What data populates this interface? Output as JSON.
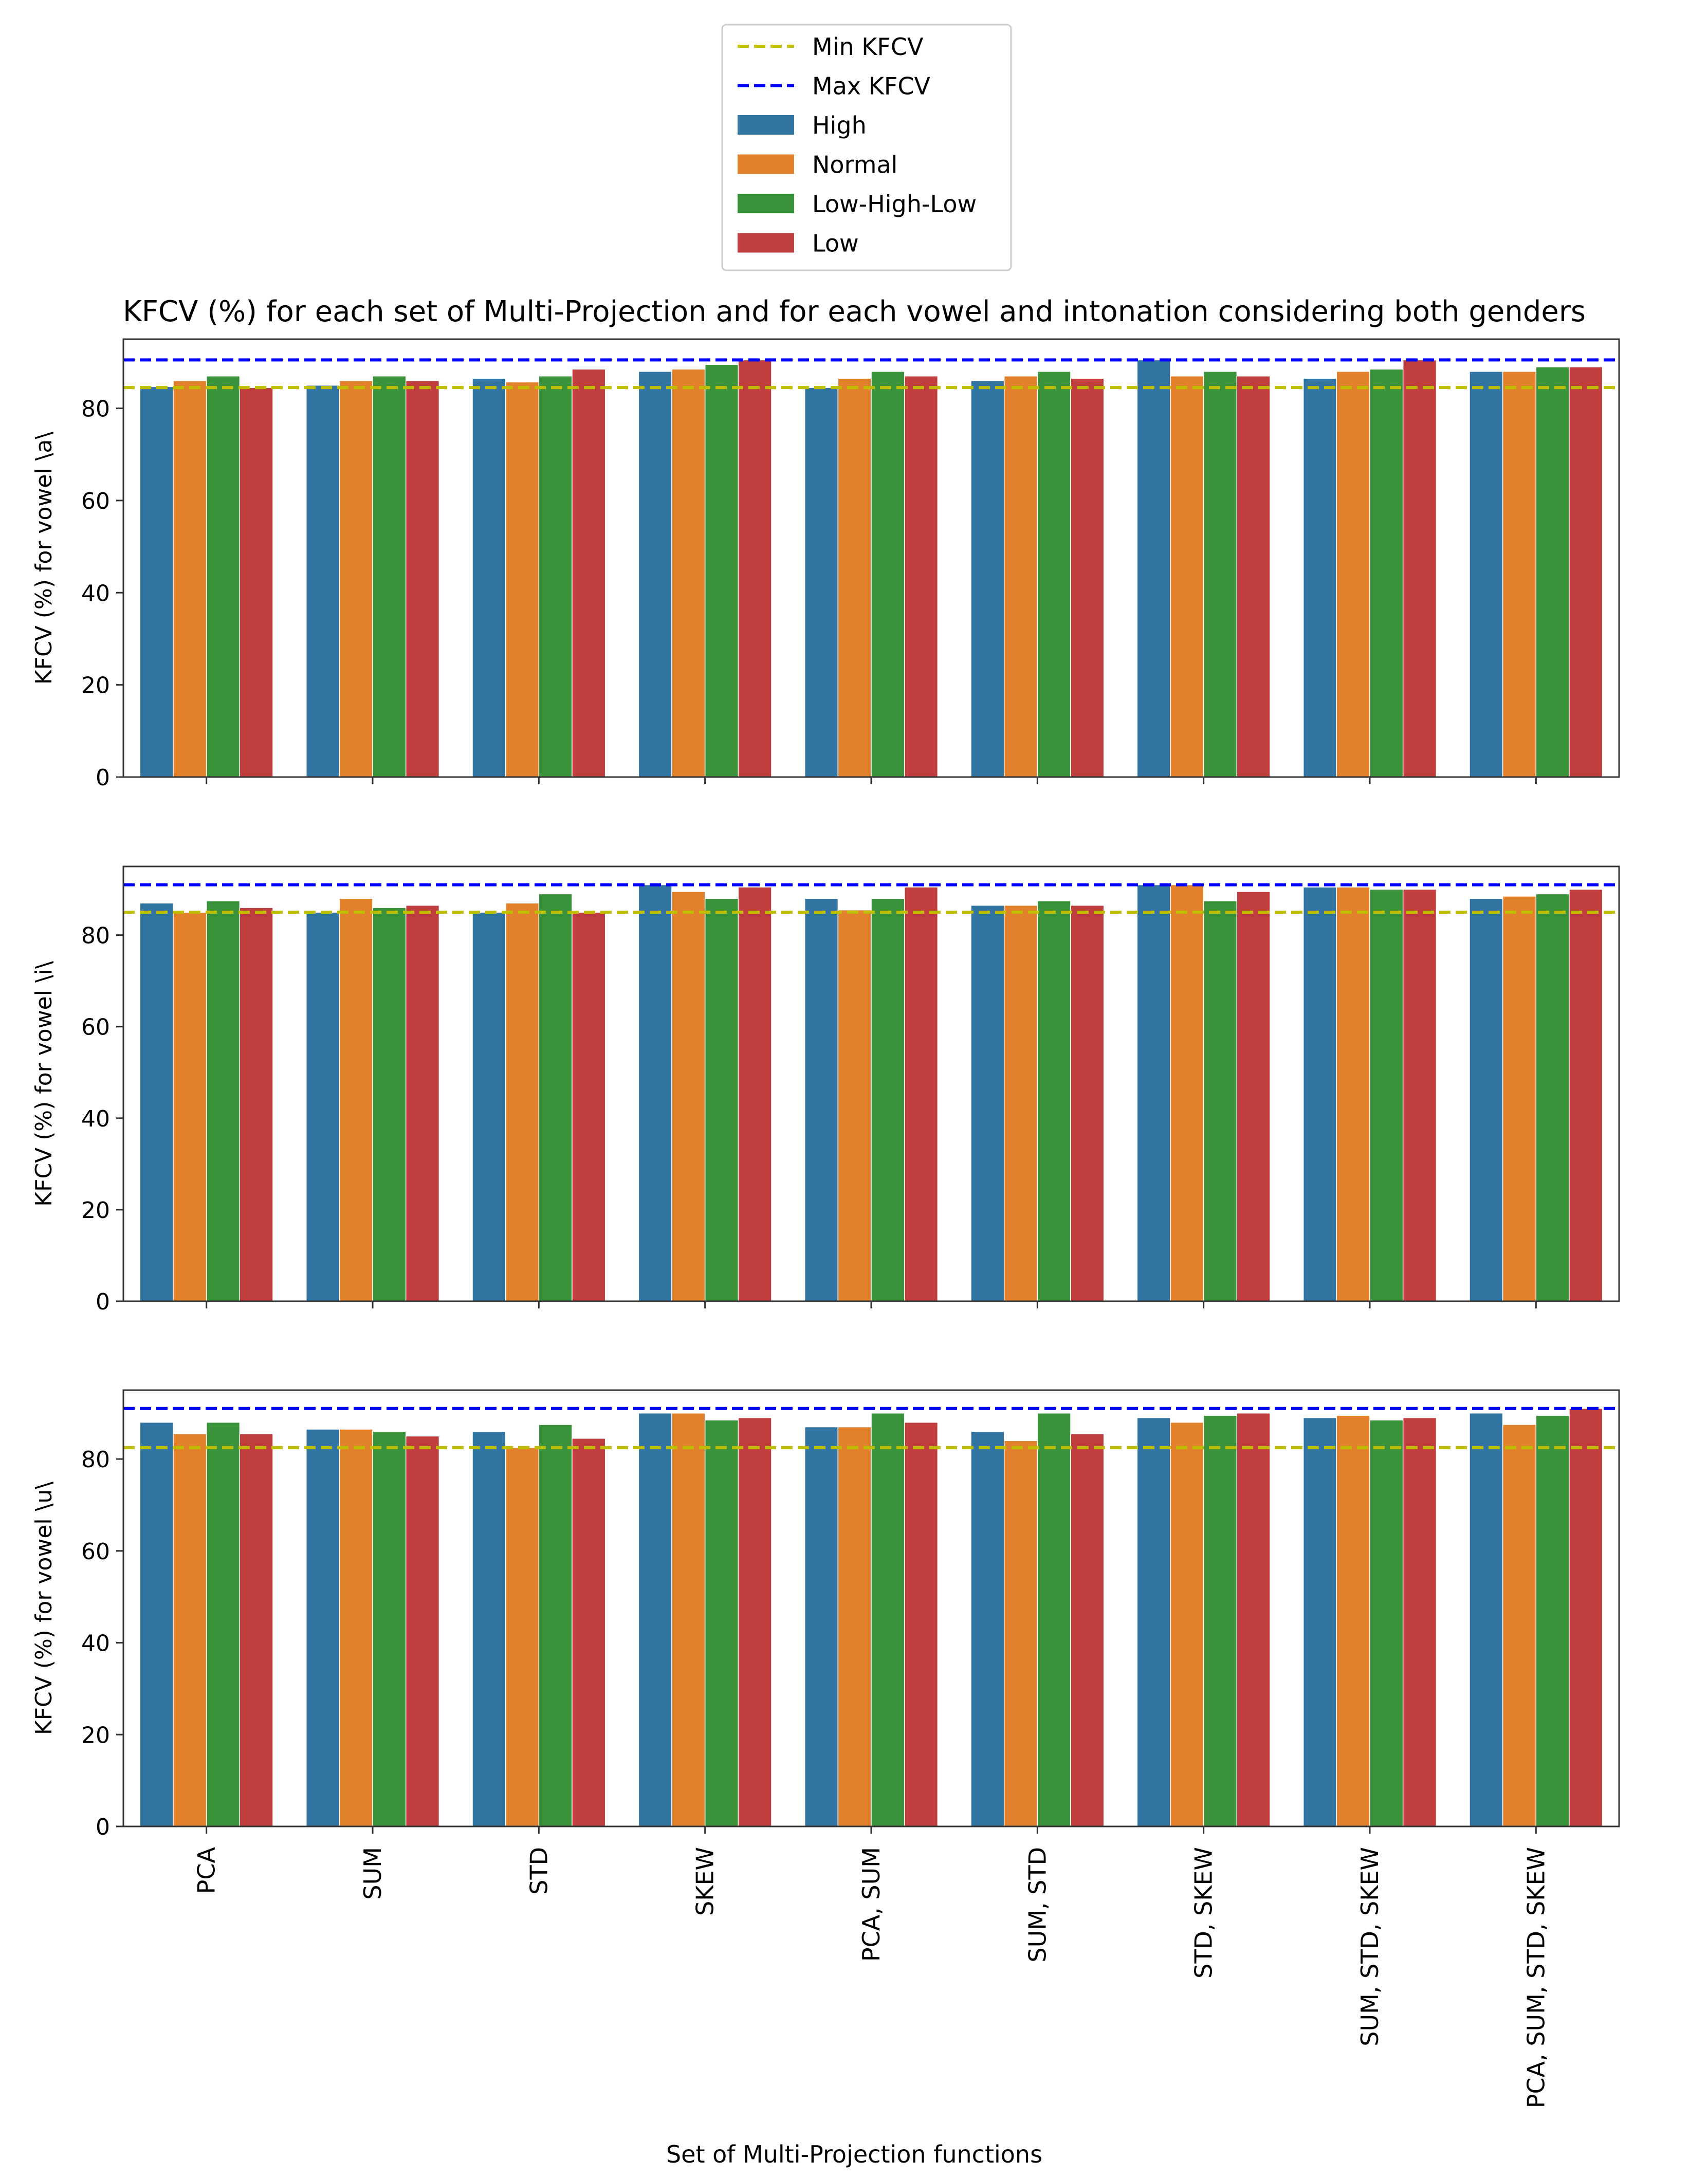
{
  "chart_data": {
    "type": "bar",
    "title": "KFCV (%) for each set of Multi-Projection and for each vowel and intonation considering both genders",
    "xlabel": "Set of Multi-Projection functions",
    "categories": [
      "PCA",
      "SUM",
      "STD",
      "SKEW",
      "PCA, SUM",
      "SUM, STD",
      "STD, SKEW",
      "SUM, STD, SKEW",
      "PCA, SUM, STD, SKEW"
    ],
    "legend": {
      "placement": "top-center",
      "entries": [
        {
          "label": "Min KFCV",
          "kind": "dashed-line",
          "color": "#bfbf00"
        },
        {
          "label": "Max KFCV",
          "kind": "dashed-line",
          "color": "#0000ff"
        },
        {
          "label": "High",
          "kind": "patch",
          "color": "#3274a1"
        },
        {
          "label": "Normal",
          "kind": "patch",
          "color": "#e1812c"
        },
        {
          "label": "Low-High-Low",
          "kind": "patch",
          "color": "#3a923a"
        },
        {
          "label": "Low",
          "kind": "patch",
          "color": "#c03d3e"
        }
      ]
    },
    "panels": [
      {
        "ylabel": "KFCV (%) for vowel \\a\\",
        "ylim": [
          0,
          95
        ],
        "yticks": [
          0,
          20,
          40,
          60,
          80
        ],
        "min_line": 84.5,
        "max_line": 90.5,
        "series": [
          {
            "name": "High",
            "values": [
              84.7,
              85.0,
              86.5,
              88.0,
              84.5,
              86.0,
              90.5,
              86.5,
              88.0
            ]
          },
          {
            "name": "Normal",
            "values": [
              86.0,
              86.0,
              85.7,
              88.5,
              86.5,
              87.0,
              87.0,
              88.0,
              88.0
            ]
          },
          {
            "name": "Low-High-Low",
            "values": [
              87.0,
              87.0,
              87.0,
              89.5,
              88.0,
              88.0,
              88.0,
              88.5,
              89.0
            ]
          },
          {
            "name": "Low",
            "values": [
              84.5,
              86.0,
              88.5,
              90.5,
              87.0,
              86.5,
              87.0,
              90.5,
              89.0
            ]
          }
        ]
      },
      {
        "ylabel": "KFCV (%) for vowel \\i\\",
        "ylim": [
          0,
          95
        ],
        "yticks": [
          0,
          20,
          40,
          60,
          80
        ],
        "min_line": 85.0,
        "max_line": 91.0,
        "series": [
          {
            "name": "High",
            "values": [
              87.0,
              85.0,
              85.0,
              91.0,
              88.0,
              86.5,
              91.0,
              90.5,
              88.0
            ]
          },
          {
            "name": "Normal",
            "values": [
              85.0,
              88.0,
              87.0,
              89.5,
              85.5,
              86.5,
              91.0,
              90.5,
              88.5
            ]
          },
          {
            "name": "Low-High-Low",
            "values": [
              87.5,
              86.0,
              89.0,
              88.0,
              88.0,
              87.5,
              87.5,
              90.0,
              89.0
            ]
          },
          {
            "name": "Low",
            "values": [
              86.0,
              86.5,
              85.0,
              90.5,
              90.5,
              86.5,
              89.5,
              90.0,
              90.0
            ]
          }
        ]
      },
      {
        "ylabel": "KFCV (%) for vowel \\u\\",
        "ylim": [
          0,
          95
        ],
        "yticks": [
          0,
          20,
          40,
          60,
          80
        ],
        "min_line": 82.5,
        "max_line": 91.0,
        "series": [
          {
            "name": "High",
            "values": [
              88.0,
              86.5,
              86.0,
              90.0,
              87.0,
              86.0,
              89.0,
              89.0,
              90.0
            ]
          },
          {
            "name": "Normal",
            "values": [
              85.5,
              86.5,
              82.5,
              90.0,
              87.0,
              84.0,
              88.0,
              89.5,
              87.5
            ]
          },
          {
            "name": "Low-High-Low",
            "values": [
              88.0,
              86.0,
              87.5,
              88.5,
              90.0,
              90.0,
              89.5,
              88.5,
              89.5
            ]
          },
          {
            "name": "Low",
            "values": [
              85.5,
              85.0,
              84.5,
              89.0,
              88.0,
              85.5,
              90.0,
              89.0,
              91.0
            ]
          }
        ]
      }
    ]
  }
}
